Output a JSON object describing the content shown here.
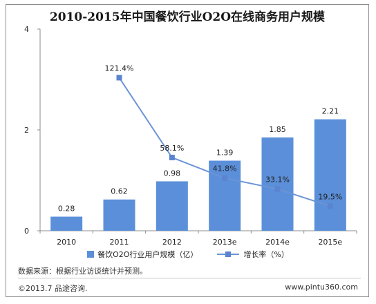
{
  "colors": {
    "bar": "#5b8fd9",
    "line": "#6b94d6",
    "marker": "#5a84cf",
    "axis": "#8c8c8c"
  },
  "chart_data": {
    "type": "bar",
    "title": "2010-2015年中国餐饮行业O2O在线商务用户规模",
    "categories": [
      "2010",
      "2011",
      "2012",
      "2013e",
      "2014e",
      "2015e"
    ],
    "series": [
      {
        "name": "餐饮O2O行业用户规模（亿）",
        "type": "bar",
        "values": [
          0.28,
          0.62,
          0.98,
          1.39,
          1.85,
          2.21
        ],
        "labels": [
          "0.28",
          "0.62",
          "0.98",
          "1.39",
          "1.85",
          "2.21"
        ]
      },
      {
        "name": "增长率（%）",
        "type": "line",
        "values": [
          null,
          121.4,
          58.1,
          41.8,
          33.1,
          19.5
        ],
        "labels": [
          "",
          "121.4%",
          "58.1%",
          "41.8%",
          "33.1%",
          "19.5%"
        ]
      }
    ],
    "y_ticks": [
      "0",
      "2",
      "4"
    ],
    "ylim": [
      0,
      4
    ],
    "line_ylim": [
      0,
      160
    ],
    "grid": false,
    "legend_position": "bottom"
  },
  "footer": {
    "source": "数据来源：根据行业访谈统计并预测。",
    "copyright": "©2013.7 品途咨询.",
    "website": "www.pintu360.com"
  }
}
